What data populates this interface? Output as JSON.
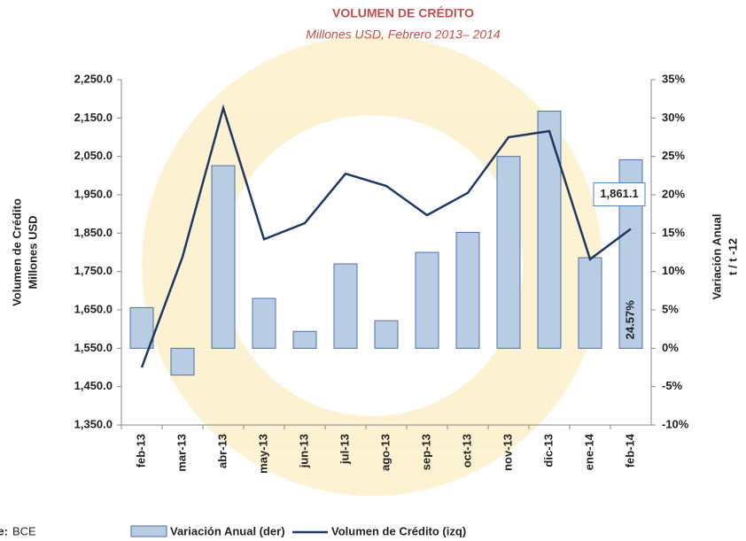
{
  "chart_data": {
    "type": "bar_line",
    "title": "VOLUMEN DE CRÉDITO",
    "subtitle": "Millones USD, Febrero 2013– 2014",
    "y_label": [
      "Volumen de Crédito",
      "Millones USD"
    ],
    "y2_label": [
      "Variación Anual",
      "t / t -12"
    ],
    "categories": [
      "feb-13",
      "mar-13",
      "abr-13",
      "may-13",
      "jun-13",
      "jul-13",
      "ago-13",
      "sep-13",
      "oct-13",
      "nov-13",
      "dic-13",
      "ene-14",
      "feb-14"
    ],
    "series": [
      {
        "name": "Variación Anual (der)",
        "type": "bar",
        "axis": "y2",
        "color": "#b8cce4",
        "edge": "#4f6fa8",
        "values": [
          5.3,
          -3.5,
          23.8,
          6.5,
          2.2,
          11,
          3.6,
          12.5,
          15.1,
          25,
          30.9,
          11.8,
          24.57
        ],
        "value_labels": [
          null,
          null,
          null,
          null,
          null,
          null,
          null,
          null,
          null,
          null,
          null,
          null,
          "24.57%"
        ]
      },
      {
        "name": "Volumen de Crédito (izq)",
        "type": "line",
        "color": "#1f3864",
        "values": [
          1500,
          1788,
          2176,
          1834,
          1876,
          2005,
          1973,
          1897,
          1955,
          2100,
          2116,
          1782,
          1861.1
        ],
        "value_labels": [
          null,
          null,
          null,
          null,
          null,
          null,
          null,
          null,
          null,
          null,
          null,
          null,
          "1,861.1"
        ]
      }
    ],
    "ylim": [
      1350,
      2250
    ],
    "yticks": [
      {
        "value": 1350,
        "label": "1,350.0"
      },
      {
        "value": 1450,
        "label": "1,450.0"
      },
      {
        "value": 1550,
        "label": "1,550.0"
      },
      {
        "value": 1650,
        "label": "1,650.0"
      },
      {
        "value": 1750,
        "label": "1,750.0"
      },
      {
        "value": 1850,
        "label": "1,850.0"
      },
      {
        "value": 1950,
        "label": "1,950.0"
      },
      {
        "value": 2050,
        "label": "2,050.0"
      },
      {
        "value": 2150,
        "label": "2,150.0"
      },
      {
        "value": 2250,
        "label": "2,250.0"
      }
    ],
    "y2lim": [
      -10,
      35
    ],
    "y2ticks": [
      {
        "value": -10,
        "label": "-10%"
      },
      {
        "value": -5,
        "label": "-5%"
      },
      {
        "value": 0,
        "label": "0%"
      },
      {
        "value": 5,
        "label": "5%"
      },
      {
        "value": 10,
        "label": "10%"
      },
      {
        "value": 15,
        "label": "15%"
      },
      {
        "value": 20,
        "label": "20%"
      },
      {
        "value": 25,
        "label": "25%"
      },
      {
        "value": 30,
        "label": "30%"
      },
      {
        "value": 35,
        "label": "35%"
      }
    ],
    "source": {
      "label": "Fuente:",
      "text": "BCE"
    }
  }
}
